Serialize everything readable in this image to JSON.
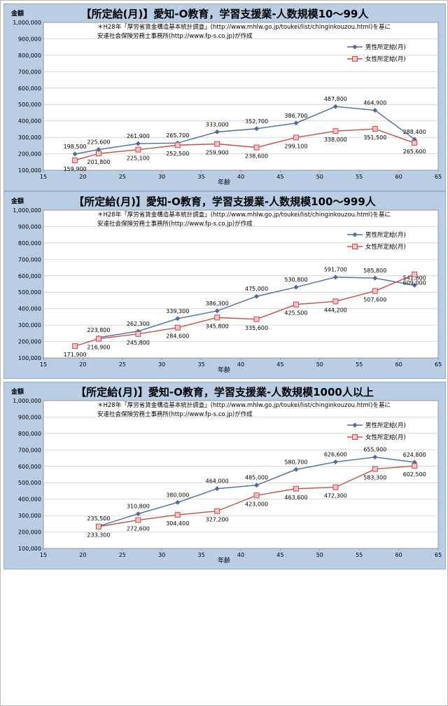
{
  "charts": [
    {
      "title": "【所定給(月)】愛知-O教育，学習支援業-人数規模10～99人",
      "source_line1": "＊H28年「厚労省賃金構造基本統計調査」(http://www.mhlw.go.jp/toukei/list/chinginkouzou.html)を基に",
      "source_line2": "安達社会保険労務士事務所(http://www.fp-s.co.jp)が作成",
      "ylabel": "金額",
      "xlabel": "年齢",
      "series_names": [
        "男性所定給(月)",
        "女性所定給(月)"
      ]
    },
    {
      "title": "【所定給(月)】愛知-O教育，学習支援業-人数規模100～999人",
      "source_line1": "＊H28年「厚労省賃金構造基本統計調査」(http://www.mhlw.go.jp/toukei/list/chinginkouzou.html)を基に",
      "source_line2": "安達社会保険労務士事務所(http://www.fp-s.co.jp)が作成",
      "ylabel": "金額",
      "xlabel": "年齢",
      "series_names": [
        "男性所定給(月)",
        "女性所定給(月)"
      ]
    },
    {
      "title": "【所定給(月)】愛知-O教育，学習支援業-人数規模1000人以上",
      "source_line1": "＊H28年「厚労省賃金構造基本統計調査」(http://www.mhlw.go.jp/toukei/list/chinginkouzou.html)を基に",
      "source_line2": "安達社会保険労務士事務所(http://www.fp-s.co.jp)が作成",
      "ylabel": "金額",
      "xlabel": "年齢",
      "series_names": [
        "男性所定給(月)",
        "女性所定給(月)"
      ]
    }
  ],
  "colors": {
    "male": "#4a6d9c",
    "female": "#c0504d",
    "female_fill": "#f2c4c3",
    "plot_bg": "#ffffff",
    "panel_bg": "#b9cde5"
  },
  "chart_data": [
    {
      "type": "line",
      "title": "【所定給(月)】愛知-O教育，学習支援業-人数規模10～99人",
      "xlabel": "年齢",
      "ylabel": "金額",
      "xlim": [
        15,
        65
      ],
      "ylim": [
        100000,
        1000000
      ],
      "xticks": [
        "15",
        "20",
        "25",
        "30",
        "35",
        "40",
        "45",
        "50",
        "55",
        "60",
        "65"
      ],
      "yticks": [
        "100,000",
        "200,000",
        "300,000",
        "400,000",
        "500,000",
        "600,000",
        "700,000",
        "800,000",
        "900,000",
        "1,000,000"
      ],
      "grid": true,
      "legend": "top-right",
      "series": [
        {
          "name": "男性所定給(月)",
          "x": [
            19,
            22,
            27,
            32,
            37,
            42,
            47,
            52,
            57,
            62
          ],
          "values": [
            198500,
            225600,
            261900,
            265700,
            333000,
            352700,
            386700,
            487800,
            464900,
            288400
          ],
          "labels": [
            "198,500",
            "225,600",
            "261,900",
            "265,700",
            "333,000",
            "352,700",
            "386,700",
            "487,800",
            "464,900",
            "288,400"
          ]
        },
        {
          "name": "女性所定給(月)",
          "x": [
            19,
            22,
            27,
            32,
            37,
            42,
            47,
            52,
            57,
            62
          ],
          "values": [
            159900,
            201800,
            225100,
            252500,
            259900,
            238600,
            299100,
            338000,
            351500,
            265600
          ],
          "labels": [
            "159,900",
            "201,800",
            "225,100",
            "252,500",
            "259,900",
            "238,600",
            "299,100",
            "338,000",
            "351,500",
            "265,600"
          ]
        }
      ]
    },
    {
      "type": "line",
      "title": "【所定給(月)】愛知-O教育，学習支援業-人数規模100～999人",
      "xlabel": "年齢",
      "ylabel": "金額",
      "xlim": [
        15,
        65
      ],
      "ylim": [
        100000,
        1000000
      ],
      "xticks": [
        "15",
        "20",
        "25",
        "30",
        "35",
        "40",
        "45",
        "50",
        "55",
        "60",
        "65"
      ],
      "yticks": [
        "100,000",
        "200,000",
        "300,000",
        "400,000",
        "500,000",
        "600,000",
        "700,000",
        "800,000",
        "900,000",
        "1,000,000"
      ],
      "grid": true,
      "legend": "top-right",
      "series": [
        {
          "name": "男性所定給(月)",
          "x": [
            22,
            27,
            32,
            37,
            42,
            47,
            52,
            57,
            62
          ],
          "values": [
            223800,
            262300,
            339300,
            386300,
            475000,
            530800,
            591700,
            585800,
            541800
          ],
          "labels": [
            "223,800",
            "262,300",
            "339,300",
            "386,300",
            "475,000",
            "530,800",
            "591,700",
            "585,800",
            "541,800"
          ]
        },
        {
          "name": "女性所定給(月)",
          "x": [
            19,
            22,
            27,
            32,
            37,
            42,
            47,
            52,
            57,
            62
          ],
          "values": [
            171900,
            216900,
            245800,
            284600,
            345800,
            335600,
            425500,
            444200,
            507600,
            609000
          ],
          "labels": [
            "171,900",
            "216,900",
            "245,800",
            "284,600",
            "345,800",
            "335,600",
            "425,500",
            "444,200",
            "507,600",
            "609,000"
          ]
        }
      ]
    },
    {
      "type": "line",
      "title": "【所定給(月)】愛知-O教育，学習支援業-人数規模1000人以上",
      "xlabel": "年齢",
      "ylabel": "金額",
      "xlim": [
        15,
        65
      ],
      "ylim": [
        100000,
        1000000
      ],
      "xticks": [
        "15",
        "20",
        "25",
        "30",
        "35",
        "40",
        "45",
        "50",
        "55",
        "60",
        "65"
      ],
      "yticks": [
        "100,000",
        "200,000",
        "300,000",
        "400,000",
        "500,000",
        "600,000",
        "700,000",
        "800,000",
        "900,000",
        "1,000,000"
      ],
      "grid": true,
      "legend": "top-right",
      "series": [
        {
          "name": "男性所定給(月)",
          "x": [
            22,
            27,
            32,
            37,
            42,
            47,
            52,
            57,
            62
          ],
          "values": [
            235500,
            310800,
            380000,
            464000,
            485000,
            580700,
            626600,
            655900,
            624800
          ],
          "labels": [
            "235,500",
            "310,800",
            "380,000",
            "464,000",
            "485,000",
            "580,700",
            "626,600",
            "655,900",
            "624,800"
          ]
        },
        {
          "name": "女性所定給(月)",
          "x": [
            22,
            27,
            32,
            37,
            42,
            47,
            52,
            57,
            62
          ],
          "values": [
            233300,
            272600,
            304400,
            327200,
            423000,
            463600,
            472300,
            583300,
            602500
          ],
          "labels": [
            "233,300",
            "272,600",
            "304,400",
            "327,200",
            "423,000",
            "463,600",
            "472,300",
            "583,300",
            "602,500"
          ]
        }
      ]
    }
  ]
}
